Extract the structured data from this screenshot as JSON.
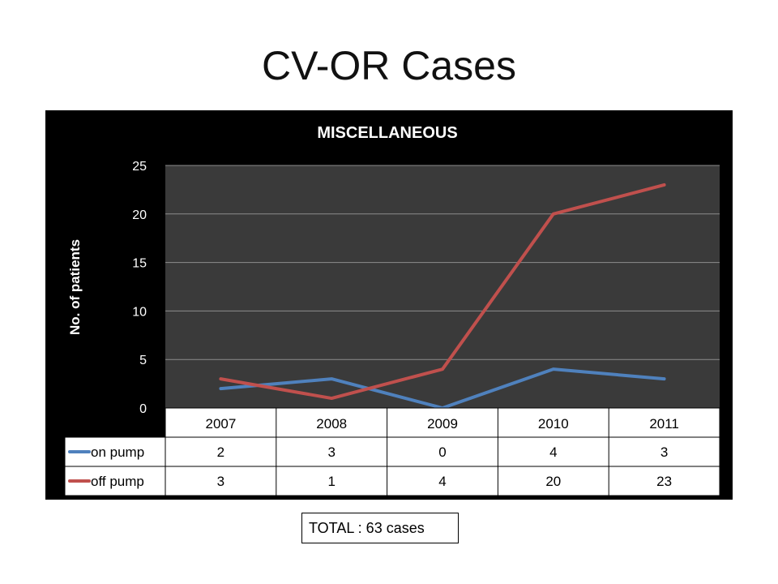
{
  "slide_title": "CV-OR Cases",
  "total_text": "TOTAL : 63 cases",
  "chart_data": {
    "type": "line",
    "title": "MISCELLANEOUS",
    "xlabel": "",
    "ylabel": "No. of patients",
    "categories": [
      "2007",
      "2008",
      "2009",
      "2010",
      "2011"
    ],
    "ylim": [
      0,
      25
    ],
    "yticks": [
      0,
      5,
      10,
      15,
      20,
      25
    ],
    "grid": true,
    "legend": "data-table",
    "series": [
      {
        "name": "on pump",
        "values": [
          2,
          3,
          0,
          4,
          3
        ],
        "color": "#4f81bd"
      },
      {
        "name": "off pump",
        "values": [
          3,
          1,
          4,
          20,
          23
        ],
        "color": "#c0504d"
      }
    ]
  },
  "colors": {
    "chart_background": "#000000",
    "plot_background": "#3a3a3a",
    "gridline": "#8c8c8c",
    "chart_text": "#ffffff"
  }
}
